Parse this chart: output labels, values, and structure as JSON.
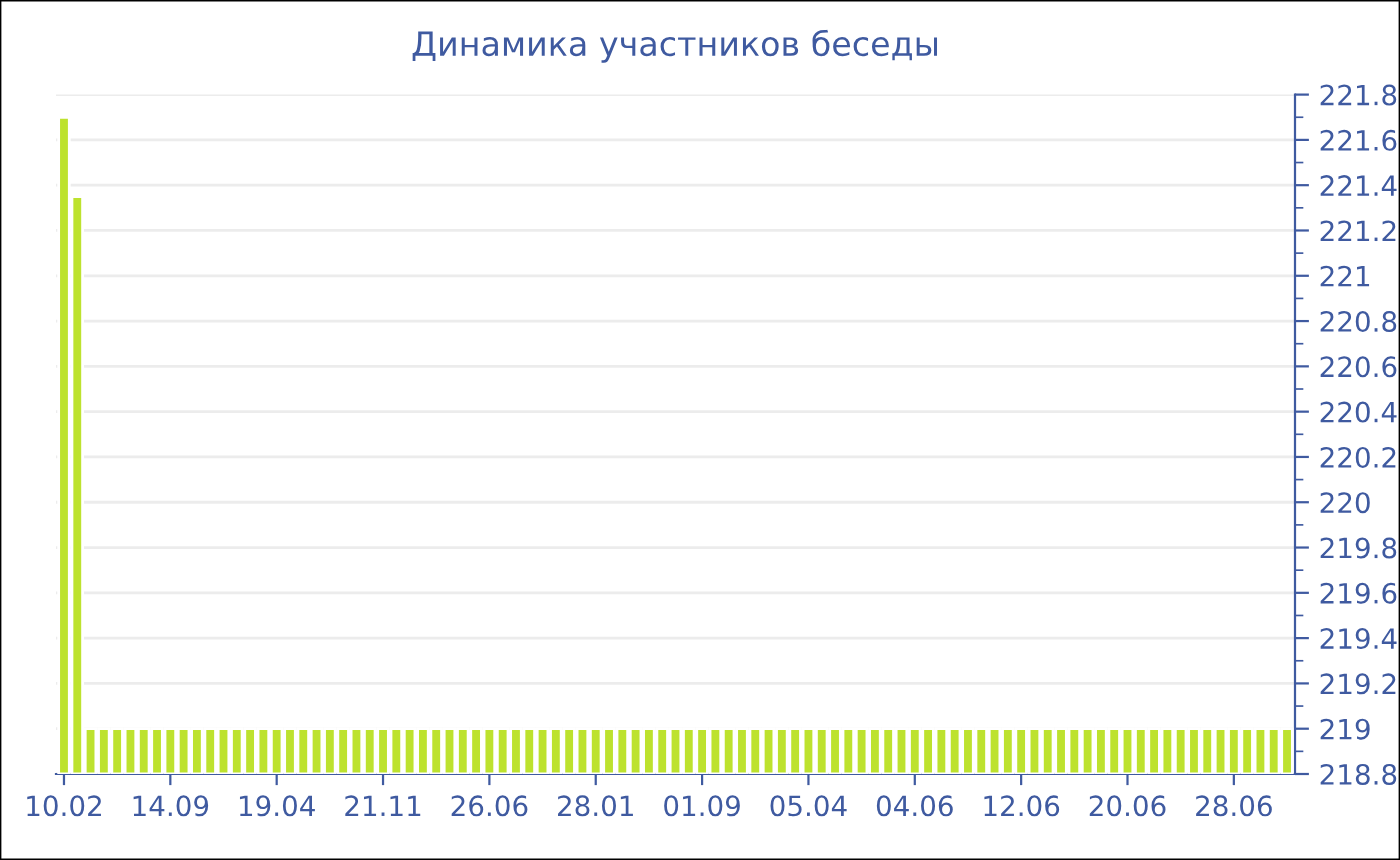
{
  "chart_data": {
    "type": "bar",
    "title": "Динамика участников беседы",
    "categories": [
      "10.02",
      null,
      null,
      null,
      null,
      null,
      null,
      null,
      "14.09",
      null,
      null,
      null,
      null,
      null,
      null,
      null,
      "19.04",
      null,
      null,
      null,
      null,
      null,
      null,
      null,
      "21.11",
      null,
      null,
      null,
      null,
      null,
      null,
      null,
      "26.06",
      null,
      null,
      null,
      null,
      null,
      null,
      null,
      "28.01",
      null,
      null,
      null,
      null,
      null,
      null,
      null,
      "01.09",
      null,
      null,
      null,
      null,
      null,
      null,
      null,
      "05.04",
      null,
      null,
      null,
      null,
      null,
      null,
      null,
      "04.06",
      null,
      null,
      null,
      null,
      null,
      null,
      null,
      "12.06",
      null,
      null,
      null,
      null,
      null,
      null,
      null,
      "20.06",
      null,
      null,
      null,
      null,
      null,
      null,
      null,
      "28.06",
      null,
      null,
      null,
      null
    ],
    "values": [
      221.7,
      221.35,
      219,
      219,
      219,
      219,
      219,
      219,
      219,
      219,
      219,
      219,
      219,
      219,
      219,
      219,
      219,
      219,
      219,
      219,
      219,
      219,
      219,
      219,
      219,
      219,
      219,
      219,
      219,
      219,
      219,
      219,
      219,
      219,
      219,
      219,
      219,
      219,
      219,
      219,
      219,
      219,
      219,
      219,
      219,
      219,
      219,
      219,
      219,
      219,
      219,
      219,
      219,
      219,
      219,
      219,
      219,
      219,
      219,
      219,
      219,
      219,
      219,
      219,
      219,
      219,
      219,
      219,
      219,
      219,
      219,
      219,
      219,
      219,
      219,
      219,
      219,
      219,
      219,
      219,
      219,
      219,
      219,
      219,
      219,
      219,
      219,
      219,
      219,
      219,
      219,
      219,
      219
    ],
    "color": "#bde22e",
    "ylim": [
      218.8,
      221.8
    ],
    "yticks": [
      218.8,
      219,
      219.2,
      219.4,
      219.6,
      219.8,
      220,
      220.2,
      220.4,
      220.6,
      220.8,
      221,
      221.2,
      221.4,
      221.6,
      221.8
    ],
    "grid": "y",
    "legend": false
  }
}
